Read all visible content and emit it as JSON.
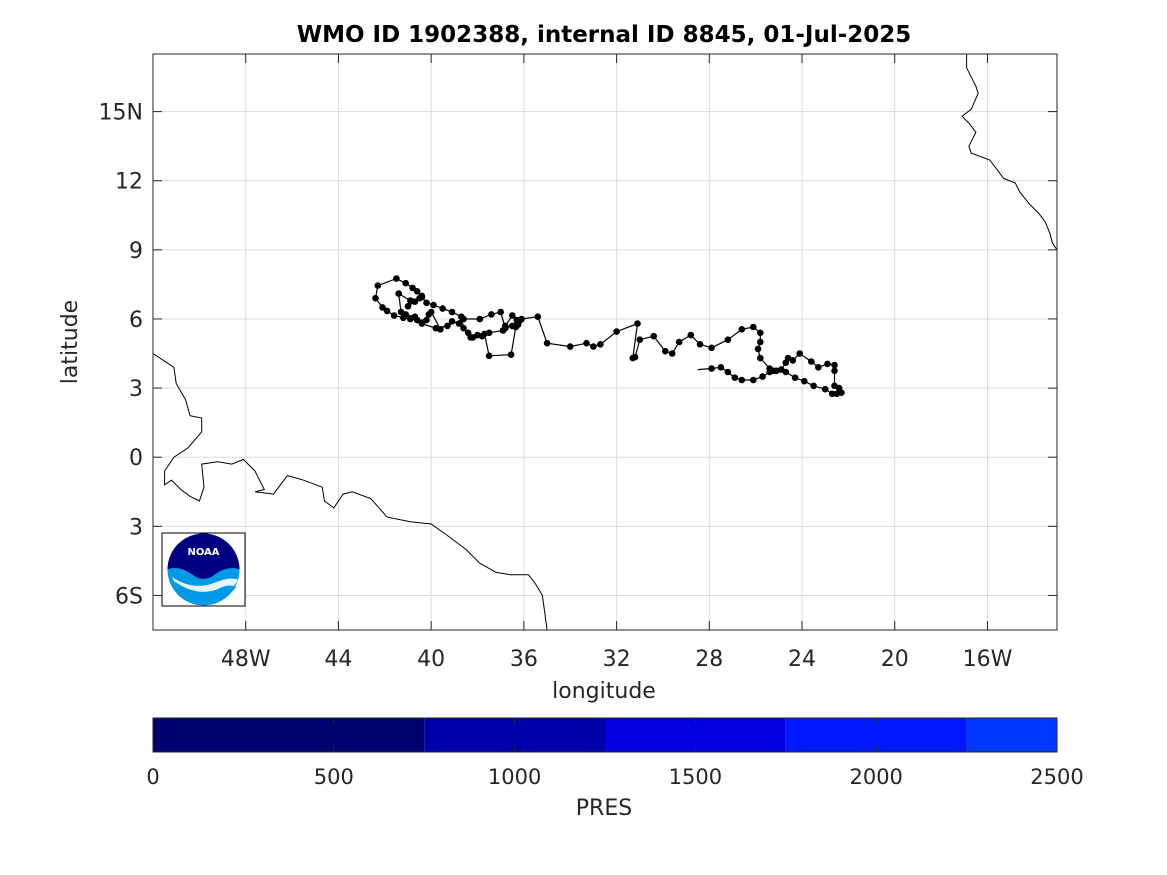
{
  "title": "WMO ID 1902388, internal ID 8845, 01-Jul-2025",
  "xlabel": "longitude",
  "ylabel": "latitude",
  "x_ticks": [
    {
      "value": -48,
      "label": "48W"
    },
    {
      "value": -44,
      "label": "44"
    },
    {
      "value": -40,
      "label": "40"
    },
    {
      "value": -36,
      "label": "36"
    },
    {
      "value": -32,
      "label": "32"
    },
    {
      "value": -28,
      "label": "28"
    },
    {
      "value": -24,
      "label": "24"
    },
    {
      "value": -20,
      "label": "20"
    },
    {
      "value": -16,
      "label": "16W"
    }
  ],
  "y_ticks": [
    {
      "value": 15,
      "label": "15N"
    },
    {
      "value": 12,
      "label": "12"
    },
    {
      "value": 9,
      "label": "9"
    },
    {
      "value": 6,
      "label": "6"
    },
    {
      "value": 3,
      "label": "3"
    },
    {
      "value": 0,
      "label": "0"
    },
    {
      "value": -3,
      "label": "3"
    },
    {
      "value": -6,
      "label": "6S"
    }
  ],
  "xlim": [
    -52,
    -13
  ],
  "ylim": [
    -7.5,
    17.5
  ],
  "colors": {
    "track": "#000000",
    "coast": "#000000",
    "grid": "#dcdcdc"
  },
  "logo": {
    "text": "NOAA"
  },
  "colorbar": {
    "label": "PRES",
    "range": [
      0,
      2500
    ],
    "ticks": [
      "0",
      "500",
      "1000",
      "1500",
      "2000",
      "2500"
    ],
    "bands": [
      {
        "from": 0,
        "to": 750,
        "color": "#00006e"
      },
      {
        "from": 750,
        "to": 1250,
        "color": "#0000a8"
      },
      {
        "from": 1250,
        "to": 1750,
        "color": "#0000e0"
      },
      {
        "from": 1750,
        "to": 2250,
        "color": "#0018ff"
      },
      {
        "from": 2250,
        "to": 2500,
        "color": "#0038ff"
      }
    ]
  },
  "chart_data": {
    "type": "scatter",
    "title": "WMO ID 1902388, internal ID 8845, 01-Jul-2025",
    "xlabel": "longitude",
    "ylabel": "latitude",
    "xlim": [
      -52,
      -13
    ],
    "ylim": [
      -7.5,
      17.5
    ],
    "grid": true,
    "track_start": [
      -28.5,
      3.8
    ],
    "track": [
      [
        -27.9,
        3.85
      ],
      [
        -27.5,
        3.9
      ],
      [
        -27.2,
        3.7
      ],
      [
        -26.9,
        3.45
      ],
      [
        -26.6,
        3.35
      ],
      [
        -26.1,
        3.35
      ],
      [
        -25.7,
        3.5
      ],
      [
        -25.4,
        3.7
      ],
      [
        -25.2,
        3.75
      ],
      [
        -24.9,
        3.8
      ],
      [
        -24.7,
        4.1
      ],
      [
        -24.6,
        4.3
      ],
      [
        -24.4,
        4.2
      ],
      [
        -24.1,
        4.5
      ],
      [
        -23.6,
        4.15
      ],
      [
        -23.3,
        3.9
      ],
      [
        -22.9,
        4.05
      ],
      [
        -22.6,
        4.0
      ],
      [
        -22.6,
        3.75
      ],
      [
        -22.6,
        3.1
      ],
      [
        -22.4,
        3.0
      ],
      [
        -22.3,
        2.8
      ],
      [
        -22.5,
        2.75
      ],
      [
        -22.7,
        2.75
      ],
      [
        -23.0,
        2.95
      ],
      [
        -23.5,
        3.1
      ],
      [
        -23.9,
        3.3
      ],
      [
        -24.3,
        3.45
      ],
      [
        -24.7,
        3.7
      ],
      [
        -25.1,
        3.75
      ],
      [
        -25.4,
        3.85
      ],
      [
        -25.8,
        4.3
      ],
      [
        -25.9,
        4.7
      ],
      [
        -25.8,
        5.0
      ],
      [
        -25.8,
        5.4
      ],
      [
        -26.1,
        5.65
      ],
      [
        -26.6,
        5.55
      ],
      [
        -27.2,
        5.1
      ],
      [
        -27.9,
        4.75
      ],
      [
        -28.4,
        4.9
      ],
      [
        -28.8,
        5.3
      ],
      [
        -29.3,
        5.0
      ],
      [
        -29.6,
        4.5
      ],
      [
        -29.9,
        4.6
      ],
      [
        -30.4,
        5.25
      ],
      [
        -31.0,
        5.1
      ],
      [
        -31.2,
        4.35
      ],
      [
        -31.3,
        4.3
      ],
      [
        -31.1,
        5.8
      ],
      [
        -32.0,
        5.45
      ],
      [
        -32.7,
        4.9
      ],
      [
        -33.0,
        4.8
      ],
      [
        -33.3,
        4.95
      ],
      [
        -34.0,
        4.8
      ],
      [
        -35.0,
        4.95
      ],
      [
        -35.4,
        6.1
      ],
      [
        -36.1,
        6.0
      ],
      [
        -36.2,
        5.9
      ],
      [
        -36.25,
        5.75
      ],
      [
        -36.35,
        5.65
      ],
      [
        -36.55,
        4.45
      ],
      [
        -37.5,
        4.4
      ],
      [
        -37.7,
        5.35
      ],
      [
        -38.2,
        5.2
      ],
      [
        -38.4,
        5.4
      ],
      [
        -38.6,
        5.6
      ],
      [
        -38.7,
        6.1
      ],
      [
        -39.1,
        6.3
      ],
      [
        -39.5,
        6.45
      ],
      [
        -39.9,
        6.6
      ],
      [
        -40.2,
        6.7
      ],
      [
        -40.4,
        6.95
      ],
      [
        -40.6,
        7.2
      ],
      [
        -40.8,
        7.35
      ],
      [
        -41.1,
        7.55
      ],
      [
        -41.5,
        7.75
      ],
      [
        -42.3,
        7.45
      ],
      [
        -42.4,
        6.9
      ],
      [
        -42.1,
        6.5
      ],
      [
        -41.9,
        6.35
      ],
      [
        -41.6,
        6.15
      ],
      [
        -41.2,
        6.05
      ],
      [
        -40.9,
        6.0
      ],
      [
        -40.6,
        5.95
      ],
      [
        -40.2,
        5.95
      ],
      [
        -40.1,
        6.2
      ],
      [
        -40.0,
        6.3
      ],
      [
        -39.6,
        5.55
      ],
      [
        -39.1,
        5.9
      ],
      [
        -38.8,
        5.8
      ],
      [
        -38.3,
        5.2
      ],
      [
        -38.0,
        5.3
      ],
      [
        -37.8,
        5.25
      ],
      [
        -37.5,
        5.4
      ],
      [
        -36.9,
        5.5
      ],
      [
        -36.8,
        5.7
      ],
      [
        -36.5,
        6.15
      ],
      [
        -36.3,
        5.95
      ],
      [
        -36.5,
        5.7
      ],
      [
        -36.8,
        5.6
      ],
      [
        -37.0,
        6.3
      ],
      [
        -37.4,
        6.2
      ],
      [
        -37.9,
        6.0
      ],
      [
        -38.6,
        6.0
      ],
      [
        -39.3,
        5.7
      ],
      [
        -39.8,
        5.6
      ],
      [
        -40.4,
        5.8
      ],
      [
        -40.7,
        6.1
      ],
      [
        -41.1,
        6.2
      ],
      [
        -41.3,
        6.3
      ],
      [
        -41.4,
        7.1
      ],
      [
        -40.9,
        6.8
      ],
      [
        -40.5,
        6.9
      ],
      [
        -40.4,
        7.0
      ],
      [
        -40.7,
        6.75
      ],
      [
        -41.0,
        6.55
      ]
    ],
    "coastlines": [
      [
        [
          -52,
          4.5
        ],
        [
          -51.1,
          3.9
        ],
        [
          -51.0,
          3.2
        ],
        [
          -50.6,
          2.5
        ],
        [
          -50.4,
          1.8
        ],
        [
          -49.9,
          1.7
        ],
        [
          -49.9,
          1.1
        ],
        [
          -50.5,
          0.4
        ],
        [
          -51.1,
          0.0
        ],
        [
          -51.5,
          -0.6
        ],
        [
          -51.5,
          -1.2
        ],
        [
          -51.2,
          -1.0
        ],
        [
          -50.8,
          -1.4
        ],
        [
          -50.4,
          -1.7
        ],
        [
          -50.0,
          -1.9
        ],
        [
          -49.8,
          -1.3
        ],
        [
          -49.9,
          -0.3
        ],
        [
          -49.2,
          -0.2
        ],
        [
          -48.6,
          -0.3
        ],
        [
          -48.1,
          -0.1
        ],
        [
          -47.6,
          -0.6
        ],
        [
          -47.2,
          -1.4
        ],
        [
          -47.6,
          -1.5
        ],
        [
          -46.8,
          -1.6
        ],
        [
          -46.2,
          -0.8
        ],
        [
          -45.5,
          -1.0
        ],
        [
          -44.7,
          -1.3
        ],
        [
          -44.6,
          -1.9
        ],
        [
          -44.2,
          -2.2
        ],
        [
          -43.8,
          -1.6
        ],
        [
          -43.4,
          -1.5
        ],
        [
          -42.6,
          -1.8
        ],
        [
          -41.9,
          -2.6
        ],
        [
          -40.9,
          -2.8
        ],
        [
          -40.0,
          -2.9
        ],
        [
          -39.3,
          -3.4
        ],
        [
          -38.5,
          -4.0
        ],
        [
          -37.9,
          -4.6
        ],
        [
          -37.2,
          -5.0
        ],
        [
          -36.6,
          -5.1
        ],
        [
          -35.8,
          -5.1
        ],
        [
          -35.5,
          -5.5
        ],
        [
          -35.2,
          -6.0
        ],
        [
          -35.0,
          -7.5
        ]
      ],
      [
        [
          -16.9,
          17.5
        ],
        [
          -16.9,
          16.9
        ],
        [
          -16.5,
          16.1
        ],
        [
          -16.4,
          15.8
        ],
        [
          -16.7,
          15.1
        ],
        [
          -17.1,
          14.8
        ],
        [
          -16.8,
          14.5
        ],
        [
          -16.5,
          14.1
        ],
        [
          -16.8,
          13.5
        ],
        [
          -16.7,
          13.2
        ],
        [
          -15.9,
          12.9
        ],
        [
          -15.3,
          12.1
        ],
        [
          -14.8,
          11.9
        ],
        [
          -14.6,
          11.5
        ],
        [
          -14.2,
          11.0
        ],
        [
          -13.8,
          10.6
        ],
        [
          -13.5,
          10.2
        ],
        [
          -13.3,
          9.7
        ],
        [
          -13.2,
          9.3
        ],
        [
          -13.0,
          9.0
        ],
        [
          -12.9,
          8.6
        ],
        [
          -13.0,
          8.3
        ]
      ]
    ]
  }
}
